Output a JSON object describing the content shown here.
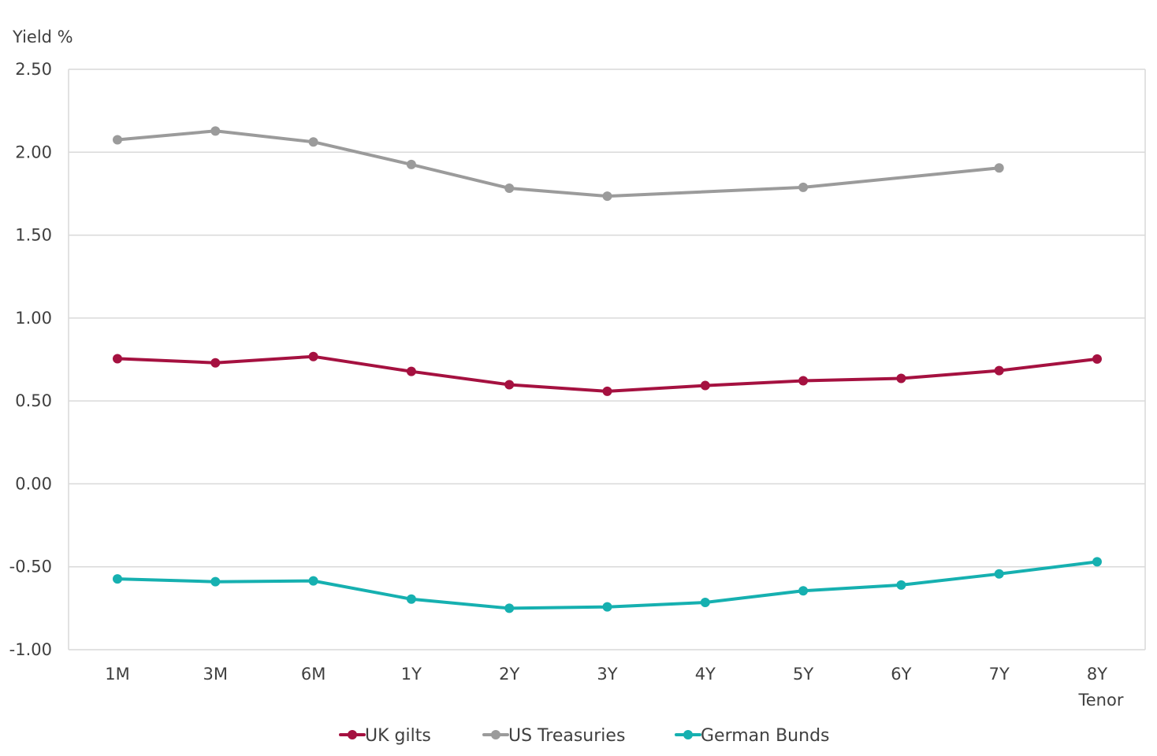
{
  "chart_data": {
    "type": "line",
    "ylabel": "Yield %",
    "xlabel": "Tenor",
    "categories": [
      "1M",
      "3M",
      "6M",
      "1Y",
      "2Y",
      "3Y",
      "4Y",
      "5Y",
      "6Y",
      "7Y",
      "8Y"
    ],
    "ylim": [
      -1.0,
      2.5
    ],
    "yticks": [
      "2.50",
      "2.00",
      "1.50",
      "1.00",
      "0.50",
      "0.00",
      "-0.50",
      "-1.00"
    ],
    "grid": "horizontal",
    "legend_placement": "bottom",
    "series": [
      {
        "name": "UK gilts",
        "color": "#A51140",
        "values": [
          0.755,
          0.73,
          0.768,
          0.678,
          0.598,
          0.558,
          0.593,
          0.622,
          0.636,
          0.683,
          0.753
        ]
      },
      {
        "name": "US Treasuries",
        "color": "#9B9B9B",
        "values": [
          2.075,
          2.128,
          2.062,
          1.926,
          1.783,
          1.735,
          null,
          1.788,
          null,
          1.905,
          null
        ]
      },
      {
        "name": "German Bunds",
        "color": "#16B0B0",
        "values": [
          -0.573,
          -0.59,
          -0.585,
          -0.695,
          -0.75,
          -0.742,
          -0.715,
          -0.645,
          -0.61,
          -0.543,
          -0.47
        ]
      }
    ]
  }
}
